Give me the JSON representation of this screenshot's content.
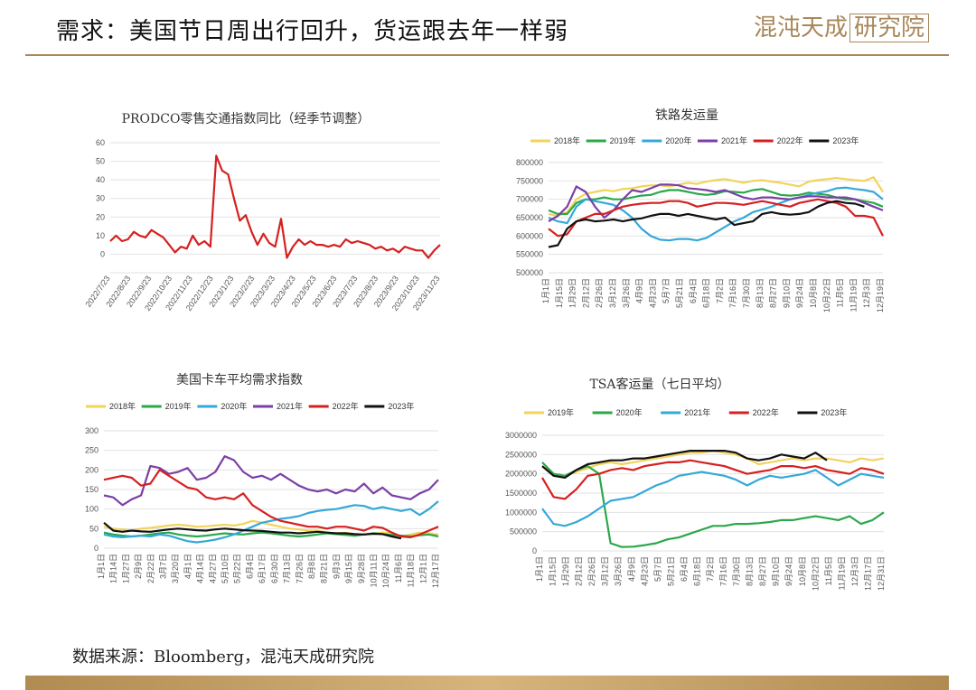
{
  "header": {
    "title": "需求：美国节日周出行回升，货运跟去年一样弱",
    "logo_text": "混沌天成",
    "logo_box": "研究院"
  },
  "footer": {
    "source": "数据来源：Bloomberg，混沌天成研究院"
  },
  "colors": {
    "gold": "#a8875a",
    "y2018": "#f2d35b",
    "y2019": "#2aa84a",
    "y2020": "#35a8d8",
    "y2021": "#7b3fa6",
    "y2022": "#d62020",
    "y2023": "#111111"
  },
  "chart_data": [
    {
      "id": "prodco",
      "type": "line",
      "title": "PRODCO零售交通指数同比（经季节调整）",
      "ylim": [
        -10,
        60
      ],
      "yticks": [
        -10,
        0,
        10,
        20,
        30,
        40,
        50,
        60
      ],
      "yticks_shown": [
        "0",
        "10",
        "20",
        "30",
        "40",
        "50",
        "60"
      ],
      "xlabels": [
        "2022/7/23",
        "2022/8/23",
        "2022/9/23",
        "2022/10/23",
        "2022/11/23",
        "2022/12/23",
        "2023/1/23",
        "2023/2/23",
        "2023/3/23",
        "2023/4/23",
        "2023/5/23",
        "2023/6/23",
        "2023/7/23",
        "2023/8/23",
        "2023/9/23",
        "2023/10/23",
        "2023/11/23"
      ],
      "series": [
        {
          "color": "#d62020",
          "values": [
            7,
            10,
            7,
            8,
            12,
            10,
            9,
            13,
            11,
            9,
            5,
            1,
            4,
            3,
            10,
            5,
            7,
            4,
            53,
            45,
            43,
            30,
            18,
            21,
            12,
            5,
            11,
            6,
            4,
            19,
            -2,
            4,
            8,
            5,
            7,
            5,
            5,
            4,
            5,
            4,
            8,
            6,
            7,
            6,
            5,
            3,
            4,
            2,
            3,
            1,
            4,
            3,
            2,
            2,
            -2,
            2,
            5
          ]
        }
      ]
    },
    {
      "id": "rail",
      "type": "line",
      "title": "铁路发运量",
      "ylim": [
        500000,
        800000
      ],
      "yticks": [
        "500000",
        "550000",
        "600000",
        "650000",
        "700000",
        "750000",
        "800000"
      ],
      "xlabels": [
        "1月1日",
        "1月15日",
        "1月29日",
        "2月12日",
        "2月26日",
        "3月12日",
        "3月26日",
        "4月9日",
        "4月23日",
        "5月7日",
        "5月21日",
        "6月4日",
        "6月18日",
        "7月2日",
        "7月16日",
        "7月30日",
        "8月13日",
        "8月27日",
        "9月10日",
        "9月24日",
        "10月8日",
        "10月22日",
        "11月5日",
        "11月19日",
        "12月3日",
        "12月19日"
      ],
      "legend": [
        "2018年",
        "2019年",
        "2020年",
        "2021年",
        "2022年",
        "2023年"
      ],
      "series": [
        {
          "name": "2018年",
          "color": "#f2d35b",
          "values": [
            660,
            655,
            665,
            700,
            715,
            720,
            725,
            722,
            728,
            730,
            735,
            738,
            738,
            735,
            740,
            745,
            742,
            748,
            752,
            755,
            750,
            745,
            750,
            752,
            748,
            745,
            740,
            735,
            748,
            752,
            755,
            758,
            755,
            752,
            750,
            760,
            720
          ]
        },
        {
          "name": "2019年",
          "color": "#2aa84a",
          "values": [
            670,
            660,
            660,
            690,
            700,
            700,
            705,
            700,
            700,
            705,
            710,
            712,
            720,
            725,
            725,
            720,
            715,
            712,
            715,
            722,
            720,
            718,
            725,
            728,
            720,
            712,
            710,
            712,
            718,
            715,
            712,
            705,
            700,
            700,
            695,
            690,
            680
          ]
        },
        {
          "name": "2020年",
          "color": "#35a8d8",
          "values": [
            650,
            640,
            635,
            680,
            700,
            695,
            690,
            685,
            670,
            650,
            620,
            600,
            590,
            588,
            592,
            592,
            588,
            595,
            610,
            625,
            640,
            650,
            665,
            672,
            680,
            690,
            700,
            705,
            712,
            718,
            722,
            730,
            732,
            728,
            725,
            720,
            700
          ]
        },
        {
          "name": "2021年",
          "color": "#7b3fa6",
          "values": [
            640,
            655,
            680,
            735,
            720,
            680,
            650,
            670,
            700,
            725,
            720,
            730,
            740,
            740,
            738,
            730,
            728,
            725,
            720,
            725,
            715,
            705,
            700,
            705,
            705,
            702,
            700,
            705,
            708,
            708,
            705,
            705,
            705,
            700,
            690,
            680,
            670
          ]
        },
        {
          "name": "2022年",
          "color": "#d62020",
          "values": [
            620,
            600,
            605,
            640,
            650,
            660,
            660,
            670,
            680,
            685,
            688,
            690,
            690,
            695,
            695,
            690,
            680,
            685,
            690,
            690,
            688,
            685,
            690,
            695,
            690,
            685,
            680,
            690,
            695,
            700,
            695,
            690,
            680,
            655,
            655,
            650,
            600
          ]
        },
        {
          "name": "2023年",
          "color": "#111111",
          "values": [
            570,
            575,
            620,
            640,
            645,
            640,
            642,
            645,
            640,
            645,
            648,
            655,
            660,
            660,
            655,
            660,
            655,
            650,
            645,
            650,
            630,
            635,
            640,
            660,
            665,
            660,
            658,
            660,
            665,
            680,
            690,
            695,
            690,
            688,
            680,
            null,
            null
          ]
        }
      ]
    },
    {
      "id": "truck",
      "type": "line",
      "title": "美国卡车平均需求指数",
      "ylim": [
        0,
        300
      ],
      "yticks": [
        "0",
        "50",
        "100",
        "150",
        "200",
        "250",
        "300"
      ],
      "xlabels": [
        "1月1日",
        "1月14日",
        "1月27日",
        "2月9日",
        "2月22日",
        "3月7日",
        "3月20日",
        "4月1日",
        "4月14日",
        "4月27日",
        "5月10日",
        "5月22日",
        "6月4日",
        "6月17日",
        "6月30日",
        "7月13日",
        "7月26日",
        "8月8日",
        "8月21日",
        "9月3日",
        "9月15日",
        "9月28日",
        "10月11日",
        "10月24日",
        "11月6日",
        "11月18日",
        "12月1日",
        "12月17日"
      ],
      "legend": [
        "2018年",
        "2019年",
        "2020年",
        "2021年",
        "2022年",
        "2023年"
      ],
      "series": [
        {
          "name": "2018年",
          "color": "#f2d35b",
          "values": [
            55,
            50,
            48,
            45,
            50,
            52,
            55,
            58,
            60,
            58,
            55,
            56,
            58,
            60,
            58,
            62,
            70,
            65,
            60,
            55,
            50,
            48,
            45,
            45,
            40,
            38,
            40,
            35,
            35,
            38,
            40,
            38,
            30,
            35,
            40,
            38,
            35
          ]
        },
        {
          "name": "2019年",
          "color": "#2aa84a",
          "values": [
            40,
            35,
            32,
            30,
            32,
            35,
            38,
            40,
            35,
            32,
            30,
            32,
            35,
            38,
            36,
            35,
            38,
            40,
            38,
            35,
            32,
            30,
            32,
            35,
            38,
            36,
            34,
            32,
            35,
            38,
            36,
            34,
            32,
            30,
            33,
            35,
            30
          ]
        },
        {
          "name": "2020年",
          "color": "#35a8d8",
          "values": [
            35,
            30,
            28,
            30,
            32,
            30,
            35,
            32,
            25,
            18,
            15,
            18,
            22,
            28,
            35,
            45,
            55,
            65,
            70,
            75,
            78,
            82,
            90,
            95,
            98,
            100,
            105,
            110,
            108,
            100,
            105,
            100,
            95,
            100,
            85,
            100,
            120
          ]
        },
        {
          "name": "2021年",
          "color": "#7b3fa6",
          "values": [
            135,
            130,
            110,
            125,
            135,
            210,
            205,
            190,
            195,
            205,
            175,
            180,
            195,
            235,
            225,
            195,
            180,
            185,
            175,
            190,
            175,
            160,
            150,
            145,
            150,
            140,
            150,
            145,
            165,
            140,
            155,
            135,
            130,
            125,
            140,
            150,
            175
          ]
        },
        {
          "name": "2022年",
          "color": "#d62020",
          "values": [
            175,
            180,
            185,
            180,
            160,
            165,
            200,
            185,
            170,
            155,
            150,
            130,
            125,
            130,
            125,
            140,
            110,
            95,
            80,
            70,
            65,
            60,
            55,
            55,
            50,
            55,
            55,
            50,
            45,
            55,
            52,
            40,
            30,
            28,
            35,
            45,
            55
          ]
        },
        {
          "name": "2023年",
          "color": "#111111",
          "values": [
            65,
            45,
            42,
            45,
            43,
            42,
            45,
            48,
            50,
            48,
            46,
            45,
            48,
            50,
            48,
            46,
            45,
            44,
            42,
            40,
            40,
            38,
            40,
            42,
            40,
            38,
            38,
            36,
            35,
            37,
            36,
            30,
            25,
            null,
            null,
            null,
            null
          ]
        }
      ]
    },
    {
      "id": "tsa",
      "type": "line",
      "title": "TSA客运量（七日平均）",
      "ylim": [
        0,
        3000000
      ],
      "yticks": [
        "0",
        "500000",
        "1000000",
        "1500000",
        "2000000",
        "2500000",
        "3000000"
      ],
      "xlabels": [
        "1月1日",
        "1月15日",
        "1月29日",
        "2月12日",
        "2月26日",
        "3月12日",
        "3月26日",
        "4月9日",
        "4月23日",
        "5月7日",
        "5月21日",
        "6月4日",
        "6月18日",
        "7月2日",
        "7月16日",
        "7月30日",
        "8月13日",
        "8月27日",
        "9月10日",
        "9月24日",
        "10月8日",
        "10月22日",
        "11月5日",
        "11月19日",
        "12月3日",
        "12月17日",
        "12月31日"
      ],
      "legend": [
        "2019年",
        "2020年",
        "2021年",
        "2022年",
        "2023年"
      ],
      "series": [
        {
          "name": "2019年",
          "color": "#f2d35b",
          "values": [
            2200,
            2000,
            1950,
            2050,
            2150,
            2250,
            2300,
            2250,
            2300,
            2350,
            2400,
            2450,
            2500,
            2550,
            2550,
            2600,
            2550,
            2500,
            2400,
            2250,
            2300,
            2350,
            2400,
            2350,
            2400,
            2400,
            2350,
            2300,
            2400,
            2350,
            2400
          ]
        },
        {
          "name": "2020年",
          "color": "#2aa84a",
          "values": [
            2300,
            2000,
            1950,
            2100,
            2200,
            2000,
            200,
            100,
            110,
            150,
            200,
            300,
            350,
            450,
            550,
            650,
            650,
            700,
            700,
            720,
            750,
            800,
            800,
            850,
            900,
            850,
            800,
            900,
            700,
            800,
            1000
          ]
        },
        {
          "name": "2021年",
          "color": "#35a8d8",
          "values": [
            1100,
            700,
            650,
            750,
            900,
            1100,
            1300,
            1350,
            1400,
            1550,
            1700,
            1800,
            1950,
            2000,
            2050,
            2000,
            1950,
            1850,
            1700,
            1850,
            1950,
            1900,
            1950,
            2000,
            2100,
            1900,
            1700,
            1850,
            2000,
            1950,
            1900
          ]
        },
        {
          "name": "2022年",
          "color": "#d62020",
          "values": [
            1900,
            1400,
            1350,
            1600,
            1950,
            2000,
            2100,
            2150,
            2100,
            2200,
            2250,
            2300,
            2300,
            2350,
            2300,
            2250,
            2200,
            2100,
            2000,
            2050,
            2100,
            2200,
            2200,
            2150,
            2200,
            2100,
            2050,
            2000,
            2150,
            2100,
            2000
          ]
        },
        {
          "name": "2023年",
          "color": "#111111",
          "values": [
            2200,
            1950,
            1900,
            2100,
            2250,
            2300,
            2350,
            2350,
            2400,
            2400,
            2450,
            2500,
            2550,
            2600,
            2600,
            2600,
            2600,
            2550,
            2400,
            2350,
            2400,
            2500,
            2450,
            2400,
            2550,
            2350,
            null,
            null,
            null,
            null,
            null
          ]
        }
      ]
    }
  ]
}
